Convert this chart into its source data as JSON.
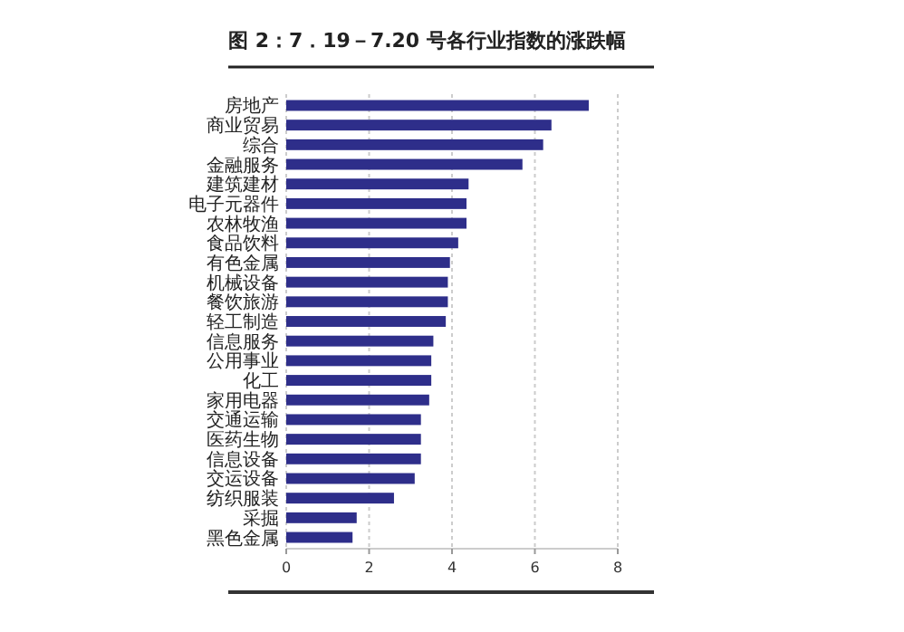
{
  "chart_data": {
    "type": "bar",
    "orientation": "horizontal",
    "title": "图 2：7．19－7.20 号各行业指数的涨跌幅",
    "categories": [
      "房地产",
      "商业贸易",
      "综合",
      "金融服务",
      "建筑建材",
      "电子元器件",
      "农林牧渔",
      "食品饮料",
      "有色金属",
      "机械设备",
      "餐饮旅游",
      "轻工制造",
      "信息服务",
      "公用事业",
      "化工",
      "家用电器",
      "交通运输",
      "医药生物",
      "信息设备",
      "交运设备",
      "纺织服装",
      "采掘",
      "黑色金属"
    ],
    "values": [
      7.3,
      6.4,
      6.2,
      5.7,
      4.4,
      4.35,
      4.35,
      4.15,
      3.95,
      3.9,
      3.9,
      3.85,
      3.55,
      3.5,
      3.5,
      3.45,
      3.25,
      3.25,
      3.25,
      3.1,
      2.6,
      1.7,
      1.6
    ],
    "color": "#2e2e8a",
    "xlim": [
      0,
      8
    ],
    "xticks": [
      0,
      2,
      4,
      6,
      8
    ],
    "grid": "x"
  }
}
